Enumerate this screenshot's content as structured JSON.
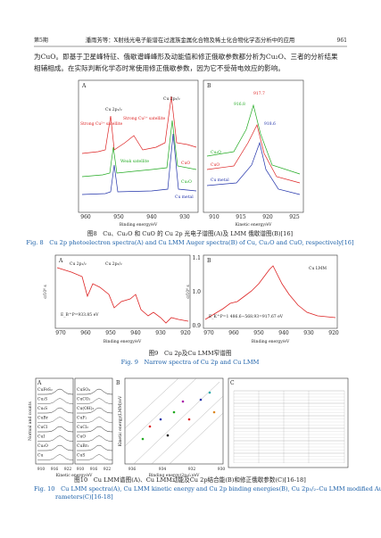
{
  "header": {
    "issue": "第5期",
    "running_title": "潘雨芳等：X射线光电子能谱在过渡族金属化合物及稀土化合物化学态分析中的应用",
    "page_number": "961"
  },
  "body": {
    "lines": [
      "为CuO。即基于卫星峰特征、俄歇谱峰峰形及动能值和修正俄歇参数都分析为Cu₂O、三者的分析结果",
      "相辅相成。在实际判断化学态时常使用修正俄歇参数，因为它不受荷电效应的影响。"
    ]
  },
  "fig8": {
    "panel_a": {
      "label": "A",
      "annotations": [
        "Cu 2p₃/₂",
        "Cu 2p₁/₂",
        "Strong Cu²⁺ satellite",
        "Strong Cu²⁺ satellite",
        "Weak satellite",
        "CuO",
        "Cu₂O",
        "Cu metal"
      ],
      "xticks": [
        "960",
        "950",
        "940",
        "930"
      ],
      "xlabel": "Binding energy/eV"
    },
    "panel_b": {
      "label": "B",
      "annotations": [
        "917.7",
        "916.8",
        "918.6",
        "Cu₂O",
        "CuO",
        "Cu metal"
      ],
      "xticks": [
        "910",
        "915",
        "920",
        "925"
      ],
      "xlabel": "Kinetic energy/eV"
    },
    "caption_cn": "图8　Cu、Cu₂O 和 CuO 的 Cu 2p 光电子谱图(A)及 LMM 俄歇谱图(B)[16]",
    "caption_en": "Fig. 8　Cu 2p photoelectron spectra(A) and Cu LMM Auger spectra(B) of Cu, Cu₂O and CuO, respectively[16]"
  },
  "fig9": {
    "panel_a": {
      "label": "A",
      "ylabel": "c/10⁶ s",
      "annotations": [
        "Cu 2p₃/₂",
        "Cu 2p₁/₂",
        "E_B^P=933.85 eV"
      ],
      "xticks": [
        "970",
        "960",
        "950",
        "940",
        "930",
        "920"
      ],
      "xlabel": "Binding energy/eV"
    },
    "panel_b": {
      "label": "B",
      "ylabel": "c/10⁶ s",
      "annotations": [
        "Cu LMM",
        "E_K^P=1 486.6−568.93=917.67 eV"
      ],
      "yticks": [
        "1.1",
        "1.0",
        "0.9"
      ],
      "xticks": [
        "970",
        "960",
        "950",
        "940",
        "930",
        "920"
      ],
      "xlabel": "Binding energy/eV"
    },
    "caption_cn": "图9　Cu 2p及Cu LMM窄谱图",
    "caption_en": "Fig. 9　Narrow spectra of Cu 2p and Cu LMM"
  },
  "fig10": {
    "panel_a": {
      "label": "A",
      "ylabel": "Normal and counts",
      "compounds_left": [
        "CuFeS₂",
        "Cu₃S",
        "Cu₂S",
        "CuBr",
        "CuCl",
        "CuI",
        "Cu₂O",
        "Cu"
      ],
      "compounds_right": [
        "CuSO₄",
        "CuCO₃",
        "Cu(OH)₂",
        "CuF₂",
        "CuCl₂",
        "CuO",
        "CuBr₂",
        "CuS"
      ],
      "xticks": [
        "910",
        "916",
        "922",
        "910",
        "916",
        "922"
      ],
      "xlabel": "Kinetic energy/eV"
    },
    "panel_b": {
      "label": "B",
      "ylabel": "Kinetic energy(LMM)/eV",
      "xticks": [
        "936",
        "934",
        "932",
        "930"
      ],
      "xlabel": "Binding energy(2p₃/₂)/eV"
    },
    "panel_c": {
      "label": "C"
    },
    "caption_cn": "图10　Cu LMM谱图(A)、Cu LMM动能及Cu 2p结合能(B)和修正俄歇参数(C)[16-18]",
    "caption_en_1": "Fig. 10　Cu LMM spectra(A), Cu LMM kinetic energy and Cu 2p binding energies(B), Cu 2p₃/₂–Cu LMM modified Auger pa-",
    "caption_en_2": "rameters(C)[16-18]"
  }
}
